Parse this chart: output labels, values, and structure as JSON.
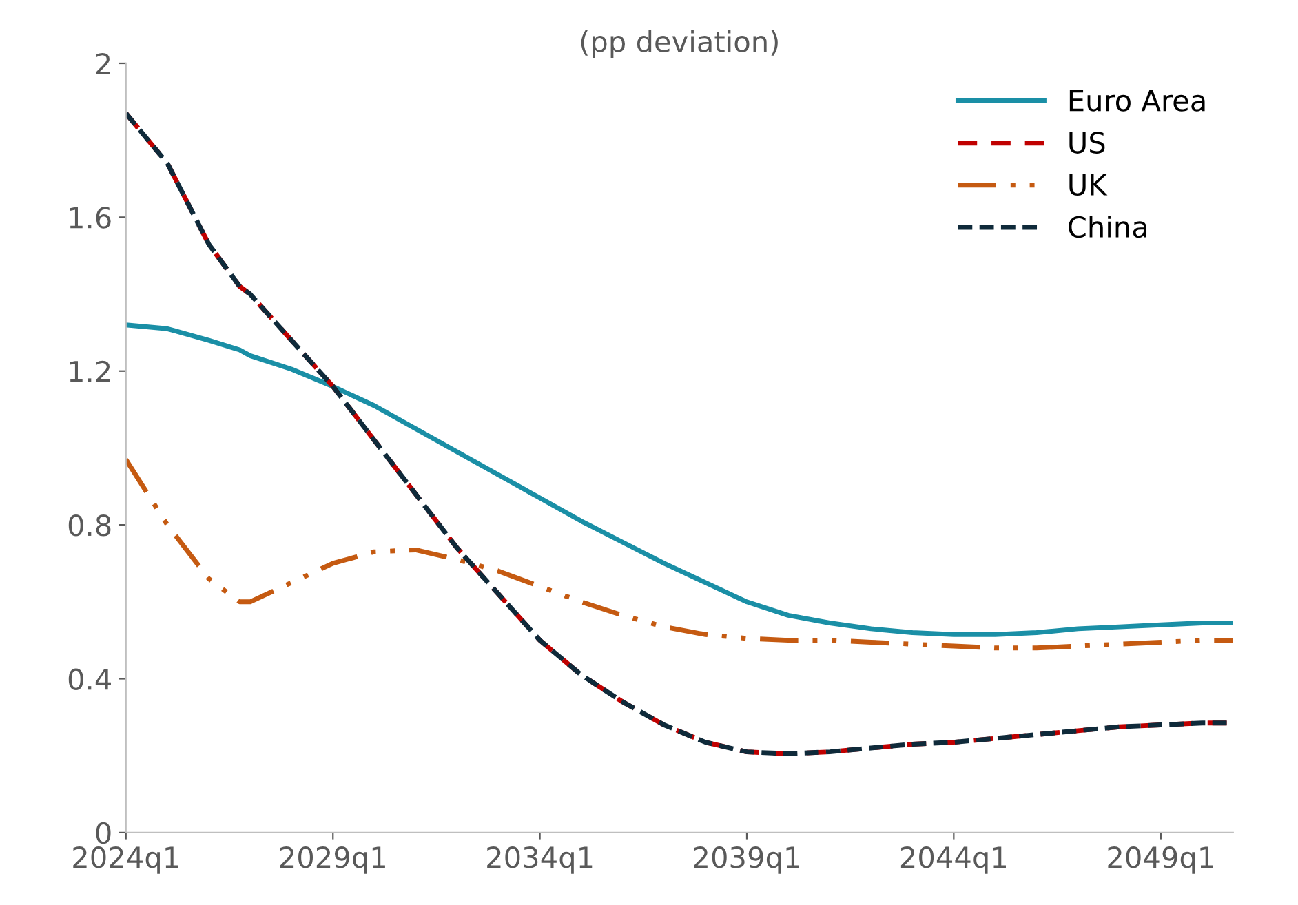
{
  "chart_data": {
    "type": "line",
    "subtitle": "(pp deviation)",
    "x": [
      "2024-01",
      "2025-01",
      "2026-01",
      "2026-10",
      "2027-01",
      "2028-01",
      "2029-01",
      "2030-01",
      "2031-01",
      "2032-01",
      "2033-01",
      "2034-01",
      "2035-01",
      "2036-01",
      "2037-01",
      "2038-01",
      "2039-01",
      "2040-01",
      "2041-01",
      "2042-01",
      "2043-01",
      "2044-01",
      "2045-01",
      "2046-01",
      "2047-01",
      "2048-01",
      "2049-01",
      "2050-01",
      "2050-10"
    ],
    "series": [
      {
        "name": "Euro Area",
        "color": "#1a8fa6",
        "line_style": "solid",
        "values": [
          1.32,
          1.31,
          1.28,
          1.255,
          1.24,
          1.205,
          1.16,
          1.11,
          1.05,
          0.99,
          0.93,
          0.87,
          0.81,
          0.755,
          0.7,
          0.65,
          0.6,
          0.565,
          0.545,
          0.53,
          0.52,
          0.515,
          0.515,
          0.52,
          0.53,
          0.535,
          0.54,
          0.545,
          0.545
        ]
      },
      {
        "name": "US",
        "color": "#c00000",
        "line_style": "dashed",
        "values": [
          1.87,
          1.74,
          1.53,
          1.42,
          1.4,
          1.28,
          1.16,
          1.02,
          0.88,
          0.74,
          0.62,
          0.5,
          0.41,
          0.34,
          0.28,
          0.235,
          0.21,
          0.205,
          0.21,
          0.22,
          0.23,
          0.235,
          0.245,
          0.255,
          0.265,
          0.275,
          0.28,
          0.285,
          0.285
        ]
      },
      {
        "name": "UK",
        "color": "#c55a11",
        "line_style": "dashed",
        "values": [
          0.97,
          0.8,
          0.66,
          0.6,
          0.6,
          0.65,
          0.7,
          0.73,
          0.735,
          0.71,
          0.68,
          0.64,
          0.6,
          0.565,
          0.535,
          0.515,
          0.505,
          0.5,
          0.5,
          0.495,
          0.49,
          0.485,
          0.48,
          0.48,
          0.485,
          0.49,
          0.495,
          0.5,
          0.5
        ]
      },
      {
        "name": "China",
        "color": "#0f2a3a",
        "line_style": "dotted",
        "values": [
          1.87,
          1.74,
          1.53,
          1.42,
          1.4,
          1.28,
          1.16,
          1.02,
          0.88,
          0.74,
          0.62,
          0.5,
          0.41,
          0.34,
          0.28,
          0.235,
          0.21,
          0.205,
          0.21,
          0.22,
          0.23,
          0.235,
          0.245,
          0.255,
          0.265,
          0.275,
          0.28,
          0.285,
          0.285
        ]
      }
    ],
    "xlim": [
      "2024-01",
      "2050-10"
    ],
    "xticks": [
      {
        "value": "2024-01",
        "label": "2024q1"
      },
      {
        "value": "2029-01",
        "label": "2029q1"
      },
      {
        "value": "2034-01",
        "label": "2034q1"
      },
      {
        "value": "2039-01",
        "label": "2039q1"
      },
      {
        "value": "2044-01",
        "label": "2044q1"
      },
      {
        "value": "2049-01",
        "label": "2049q1"
      }
    ],
    "ylim": [
      0,
      2
    ],
    "yticks": [
      0,
      0.4,
      0.8,
      1.2,
      1.6,
      2
    ],
    "legend": "top right",
    "grid": false
  }
}
